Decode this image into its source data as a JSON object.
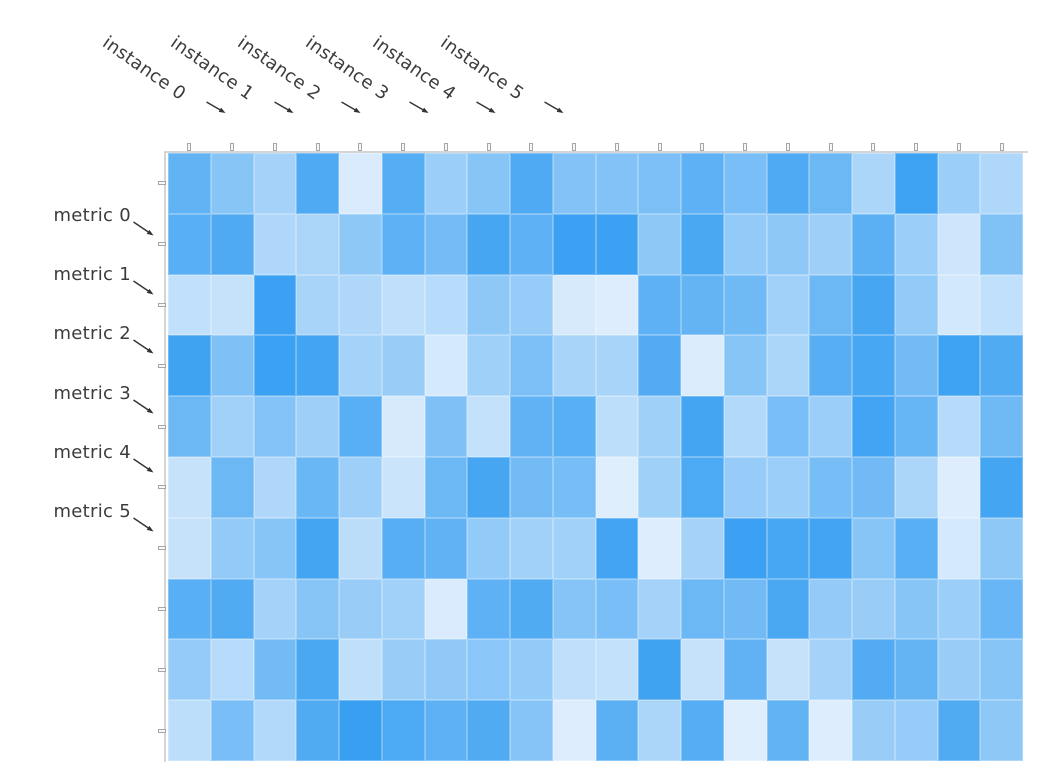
{
  "figure": {
    "background": "#ffffff",
    "text_color": "#3c3c3c",
    "spine_color": "#d5d5d5",
    "label_arrow_icon": "arrow-down-right"
  },
  "chart_data": {
    "type": "heatmap",
    "title": "",
    "xlabel": "",
    "ylabel": "",
    "rows": 10,
    "cols": 20,
    "col_labels": [
      "instance 0",
      "instance 1",
      "instance 2",
      "instance 3",
      "instance 4",
      "instance 5"
    ],
    "row_labels": [
      "metric 0",
      "metric 1",
      "metric 2",
      "metric 3",
      "metric 4",
      "metric 5"
    ],
    "values": [
      [
        0.75,
        0.55,
        0.4,
        0.85,
        0.12,
        0.82,
        0.45,
        0.55,
        0.85,
        0.58,
        0.58,
        0.62,
        0.78,
        0.63,
        0.85,
        0.7,
        0.36,
        0.94,
        0.45,
        0.35
      ],
      [
        0.8,
        0.85,
        0.35,
        0.37,
        0.52,
        0.78,
        0.65,
        0.9,
        0.78,
        0.95,
        0.95,
        0.52,
        0.88,
        0.5,
        0.52,
        0.44,
        0.79,
        0.45,
        0.18,
        0.59
      ],
      [
        0.25,
        0.22,
        0.95,
        0.38,
        0.35,
        0.26,
        0.3,
        0.52,
        0.47,
        0.13,
        0.1,
        0.77,
        0.74,
        0.68,
        0.42,
        0.7,
        0.9,
        0.5,
        0.16,
        0.25
      ],
      [
        0.93,
        0.6,
        0.96,
        0.92,
        0.4,
        0.46,
        0.15,
        0.43,
        0.62,
        0.38,
        0.38,
        0.83,
        0.11,
        0.55,
        0.37,
        0.81,
        0.89,
        0.66,
        0.94,
        0.84
      ],
      [
        0.7,
        0.42,
        0.57,
        0.44,
        0.8,
        0.14,
        0.6,
        0.24,
        0.76,
        0.8,
        0.27,
        0.43,
        0.91,
        0.33,
        0.63,
        0.45,
        0.92,
        0.73,
        0.31,
        0.68
      ],
      [
        0.22,
        0.7,
        0.35,
        0.71,
        0.44,
        0.2,
        0.7,
        0.9,
        0.66,
        0.64,
        0.09,
        0.43,
        0.87,
        0.47,
        0.45,
        0.64,
        0.67,
        0.36,
        0.1,
        0.91
      ],
      [
        0.22,
        0.5,
        0.55,
        0.91,
        0.28,
        0.81,
        0.76,
        0.5,
        0.42,
        0.42,
        0.92,
        0.1,
        0.4,
        0.95,
        0.89,
        0.92,
        0.55,
        0.8,
        0.15,
        0.52
      ],
      [
        0.8,
        0.84,
        0.4,
        0.55,
        0.46,
        0.42,
        0.12,
        0.77,
        0.84,
        0.56,
        0.63,
        0.4,
        0.7,
        0.67,
        0.88,
        0.49,
        0.46,
        0.55,
        0.45,
        0.72
      ],
      [
        0.48,
        0.3,
        0.66,
        0.88,
        0.26,
        0.46,
        0.51,
        0.54,
        0.5,
        0.26,
        0.24,
        0.93,
        0.22,
        0.76,
        0.22,
        0.4,
        0.83,
        0.74,
        0.46,
        0.55
      ],
      [
        0.27,
        0.63,
        0.33,
        0.84,
        0.97,
        0.87,
        0.78,
        0.84,
        0.56,
        0.1,
        0.79,
        0.37,
        0.82,
        0.09,
        0.75,
        0.1,
        0.46,
        0.47,
        0.84,
        0.52
      ]
    ],
    "value_range": [
      0,
      1
    ],
    "colormap": {
      "type": "linear-blues",
      "min_color": "#F0F6FE",
      "max_color": "#339DF1"
    },
    "layout": {
      "grid": "off",
      "colorbar": "off",
      "legend": "off",
      "col_label_rotation_deg": 35,
      "x_ticks": 20,
      "y_ticks": 10,
      "labeled_cols": 6,
      "labeled_rows": 6
    }
  }
}
